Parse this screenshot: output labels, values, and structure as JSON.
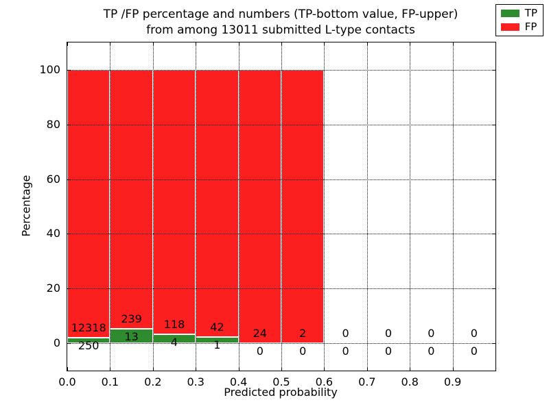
{
  "figure": {
    "title_line1": "TP /FP percentage and numbers (TP-bottom value, FP-upper)",
    "title_line2": "from among 13011 submitted L-type contacts"
  },
  "chart_data": {
    "type": "bar",
    "stacked": true,
    "title": "TP /FP percentage and numbers (TP-bottom value, FP-upper)\nfrom among 13011 submitted L-type contacts",
    "xlabel": "Predicted probability",
    "ylabel": "Percentage",
    "xlim": [
      0.0,
      1.0
    ],
    "ylim": [
      -10,
      110
    ],
    "x_ticks": [
      "0.0",
      "0.1",
      "0.2",
      "0.3",
      "0.4",
      "0.5",
      "0.6",
      "0.7",
      "0.8",
      "0.9"
    ],
    "y_ticks": [
      0,
      20,
      40,
      60,
      80,
      100
    ],
    "bin_width": 0.1,
    "bin_starts": [
      0.0,
      0.1,
      0.2,
      0.3,
      0.4,
      0.5,
      0.6,
      0.7,
      0.8,
      0.9
    ],
    "grid": "dotted",
    "legend_position": "upper right",
    "series": [
      {
        "name": "TP",
        "color": "#2e8b2e",
        "counts": [
          250,
          13,
          4,
          1,
          0,
          0,
          0,
          0,
          0,
          0
        ]
      },
      {
        "name": "FP",
        "color": "#fb1f1f",
        "counts": [
          12318,
          239,
          118,
          42,
          24,
          2,
          0,
          0,
          0,
          0
        ]
      }
    ],
    "tp_percent_of_bin": [
      1.99,
      5.16,
      3.28,
      2.33,
      0.0,
      0.0,
      0,
      0,
      0,
      0
    ],
    "total_contacts": 13011
  }
}
